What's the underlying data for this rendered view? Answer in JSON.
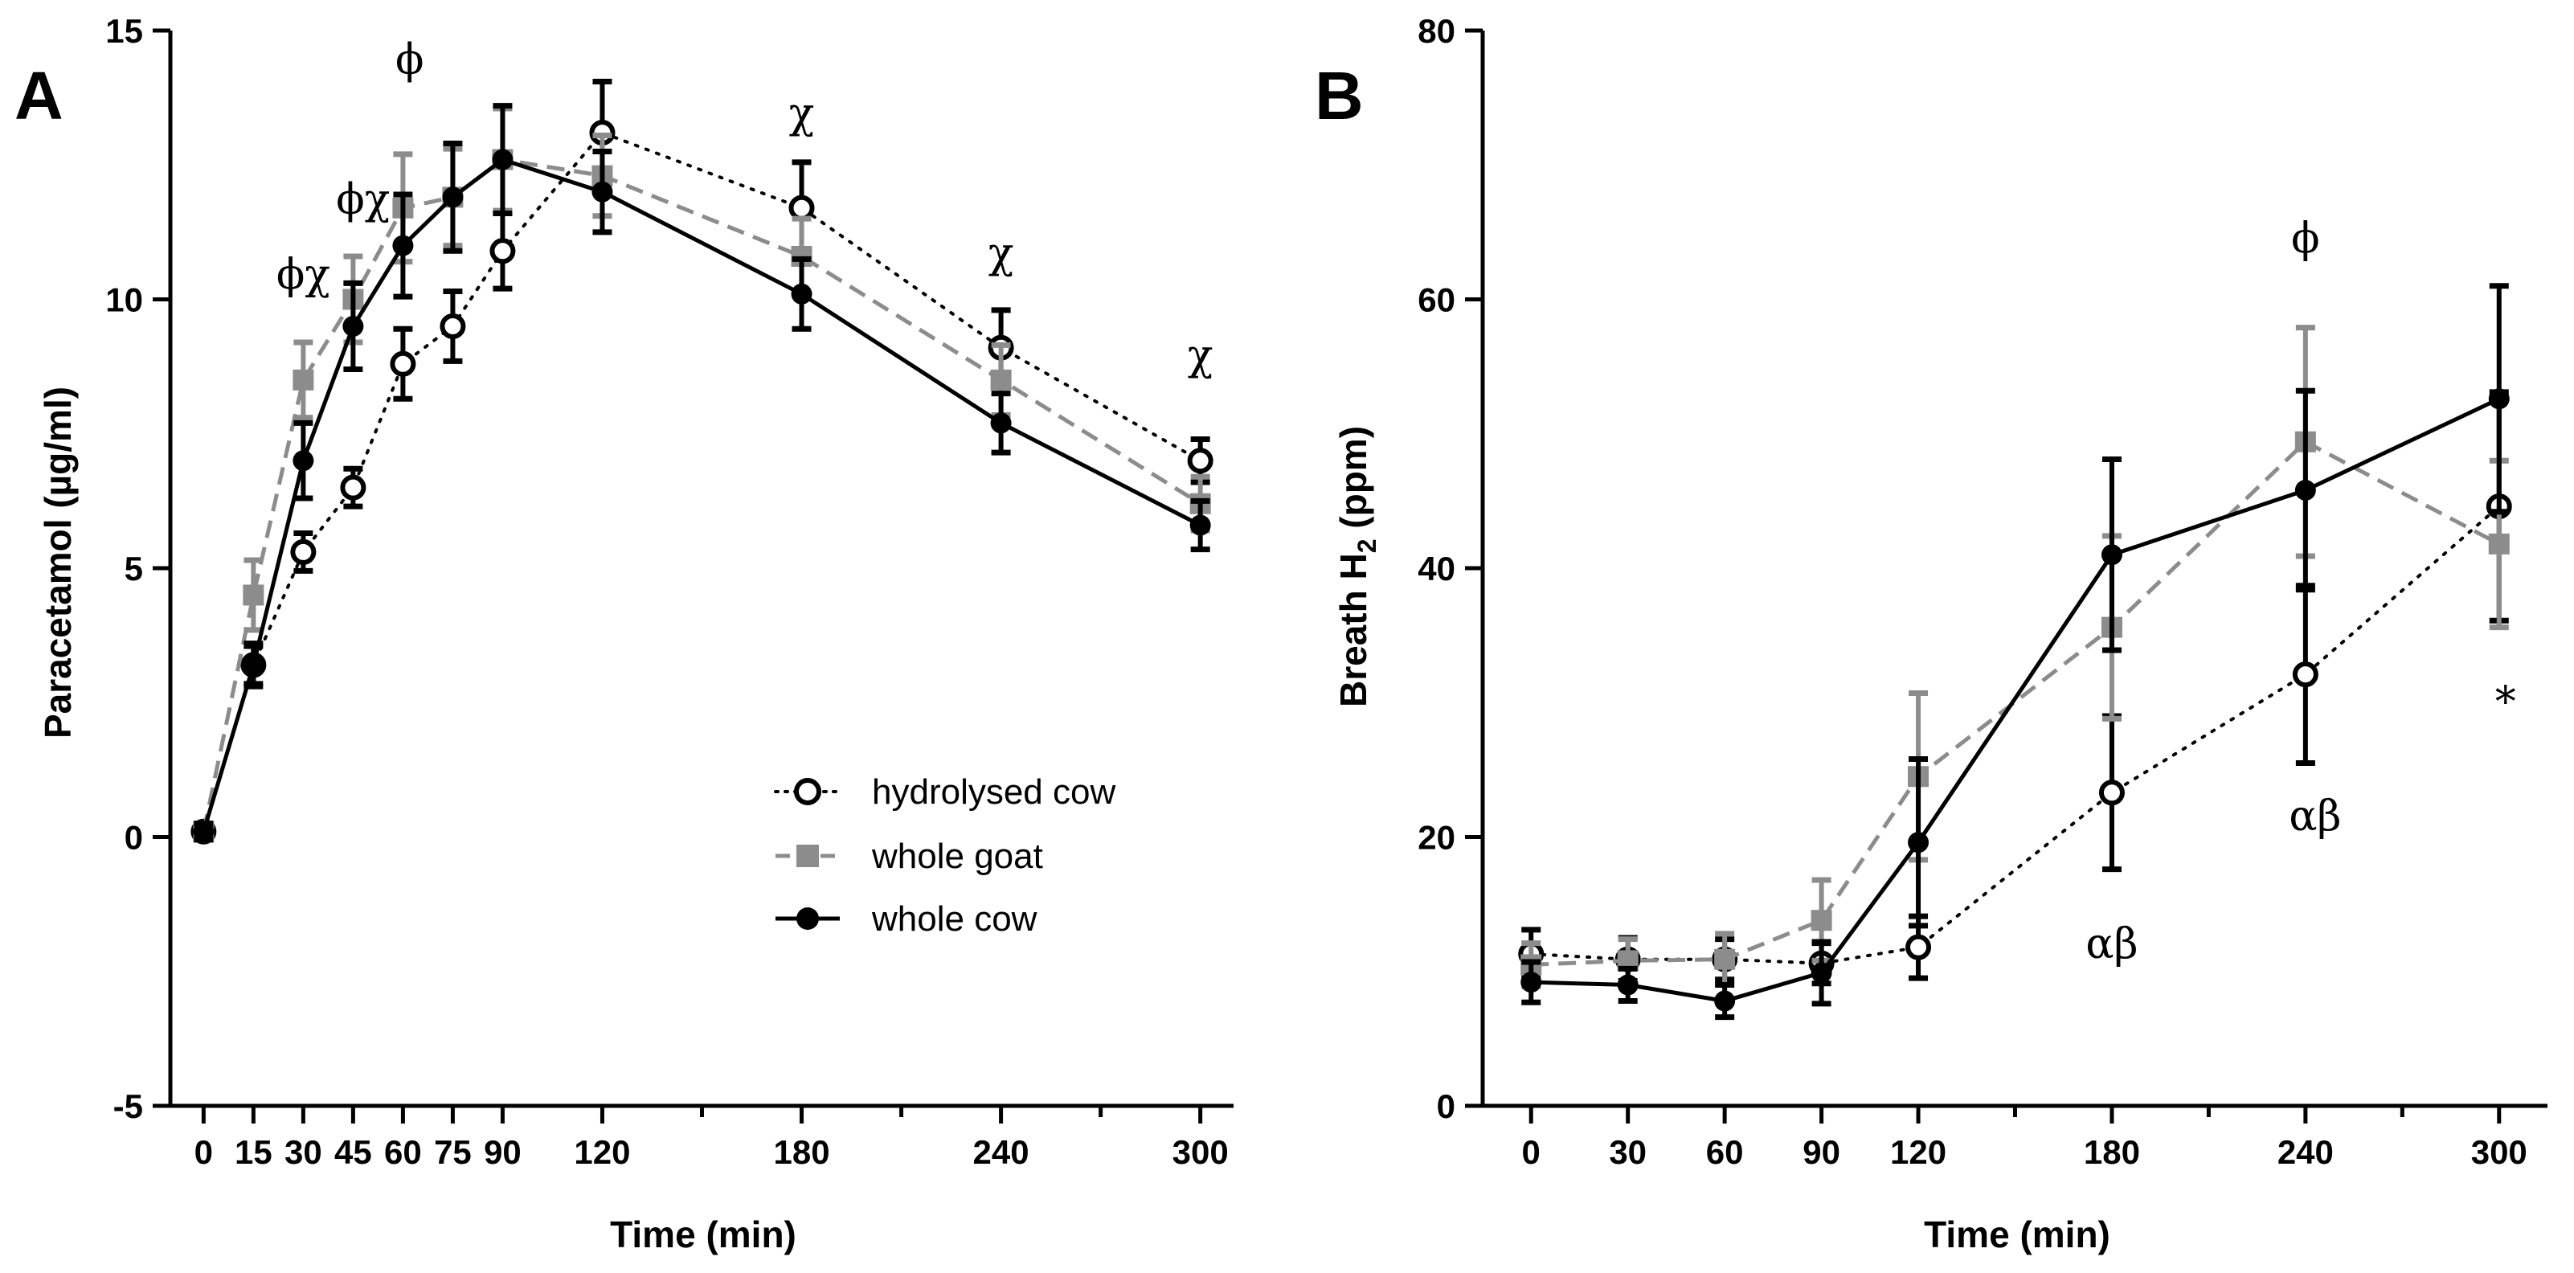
{
  "chart_data": [
    {
      "panel": "A",
      "type": "line",
      "xlabel": "Time (min)",
      "ylabel": "Paracetamol (µg/ml)",
      "xlim": [
        -10,
        310
      ],
      "ylim": [
        -5,
        15
      ],
      "xticks": [
        0,
        15,
        30,
        45,
        60,
        75,
        90,
        120,
        180,
        240,
        300
      ],
      "xtick_labels": [
        "0",
        "15",
        "30",
        "45",
        "60",
        "75",
        "90",
        "120",
        "180",
        "240",
        "300"
      ],
      "minor_xticks": [
        150,
        210,
        270
      ],
      "yticks": [
        -5,
        0,
        5,
        10,
        15
      ],
      "ytick_labels": [
        "-5",
        "0",
        "5",
        "10",
        "15"
      ],
      "series": [
        {
          "name": "hydrolysed cow",
          "style": "dotted",
          "marker": "open-circle",
          "color": "#000000",
          "x": [
            0,
            15,
            30,
            45,
            60,
            75,
            90,
            120,
            180,
            240,
            300
          ],
          "y": [
            0.1,
            3.2,
            5.3,
            6.5,
            8.8,
            9.5,
            10.9,
            13.1,
            11.7,
            9.1,
            7.0
          ],
          "err": [
            0.15,
            0.35,
            0.35,
            0.35,
            0.65,
            0.65,
            0.7,
            0.95,
            0.85,
            0.7,
            0.4
          ]
        },
        {
          "name": "whole goat",
          "style": "dashed",
          "marker": "square",
          "color": "#8c8c8c",
          "x": [
            0,
            15,
            30,
            45,
            60,
            75,
            90,
            120,
            180,
            240,
            300
          ],
          "y": [
            0.1,
            4.5,
            8.5,
            10.0,
            11.7,
            11.9,
            12.6,
            12.3,
            10.8,
            8.5,
            6.2
          ],
          "err": [
            0.15,
            0.65,
            0.7,
            0.8,
            1.0,
            0.9,
            0.95,
            0.75,
            0.7,
            0.65,
            0.5
          ]
        },
        {
          "name": "whole cow",
          "style": "solid",
          "marker": "filled-circle",
          "color": "#000000",
          "x": [
            0,
            15,
            30,
            45,
            60,
            75,
            90,
            120,
            180,
            240,
            300
          ],
          "y": [
            0.1,
            3.2,
            7.0,
            9.5,
            11.0,
            11.9,
            12.6,
            12.0,
            10.1,
            7.7,
            5.8
          ],
          "err": [
            0.15,
            0.4,
            0.7,
            0.8,
            0.95,
            1.0,
            1.0,
            0.75,
            0.65,
            0.55,
            0.45
          ]
        }
      ],
      "annotations": [
        {
          "text": "ϕχ",
          "x": 30,
          "y": 10.2
        },
        {
          "text": "ϕχ",
          "x": 48,
          "y": 11.6
        },
        {
          "text": "ϕ",
          "x": 62,
          "y": 14.2
        },
        {
          "text": "χ",
          "x": 180,
          "y": 13.2
        },
        {
          "text": "χ",
          "x": 240,
          "y": 10.6
        },
        {
          "text": "χ",
          "x": 300,
          "y": 8.7
        }
      ],
      "legend": "center-right"
    },
    {
      "panel": "B",
      "type": "line",
      "xlabel": "Time (min)",
      "ylabel": "Breath H",
      "ylabel_sub": "2",
      "ylabel_suffix": " (ppm)",
      "xlim": [
        -15,
        315
      ],
      "ylim": [
        0,
        80
      ],
      "xticks": [
        0,
        30,
        60,
        90,
        120,
        180,
        240,
        300
      ],
      "xtick_labels": [
        "0",
        "30",
        "60",
        "90",
        "120",
        "180",
        "240",
        "300"
      ],
      "minor_xticks": [
        150,
        210,
        270
      ],
      "yticks": [
        0,
        20,
        40,
        60,
        80
      ],
      "ytick_labels": [
        "0",
        "20",
        "40",
        "60",
        "80"
      ],
      "series": [
        {
          "name": "hydrolysed cow",
          "style": "dotted",
          "marker": "open-circle",
          "color": "#000000",
          "x": [
            0,
            30,
            60,
            90,
            120,
            180,
            240,
            300
          ],
          "y": [
            11.3,
            10.9,
            10.9,
            10.6,
            11.8,
            23.3,
            32.1,
            44.6
          ],
          "err": [
            1.8,
            1.6,
            1.5,
            1.5,
            2.3,
            5.7,
            6.6,
            8.5
          ]
        },
        {
          "name": "whole goat",
          "style": "dashed",
          "marker": "square",
          "color": "#8c8c8c",
          "x": [
            0,
            30,
            60,
            90,
            120,
            180,
            240,
            300
          ],
          "y": [
            10.5,
            10.8,
            10.9,
            13.8,
            24.5,
            35.6,
            49.4,
            41.8
          ],
          "err": [
            1.6,
            1.6,
            1.9,
            3.0,
            6.2,
            6.8,
            8.5,
            6.2
          ]
        },
        {
          "name": "whole cow",
          "style": "solid",
          "marker": "filled-circle",
          "color": "#000000",
          "x": [
            0,
            30,
            60,
            90,
            120,
            180,
            240,
            300
          ],
          "y": [
            9.2,
            9.0,
            7.8,
            9.9,
            19.6,
            41.0,
            45.8,
            52.6
          ],
          "err": [
            1.5,
            1.2,
            1.2,
            2.3,
            6.2,
            7.1,
            7.4,
            8.4
          ]
        }
      ],
      "annotations": [
        {
          "text": "αβ",
          "x": 180,
          "y": 11
        },
        {
          "text": "αβ",
          "x": 243,
          "y": 20.5
        },
        {
          "text": "ϕ",
          "x": 240,
          "y": 63.5
        },
        {
          "text": "*",
          "x": 302,
          "y": 29
        }
      ]
    }
  ]
}
